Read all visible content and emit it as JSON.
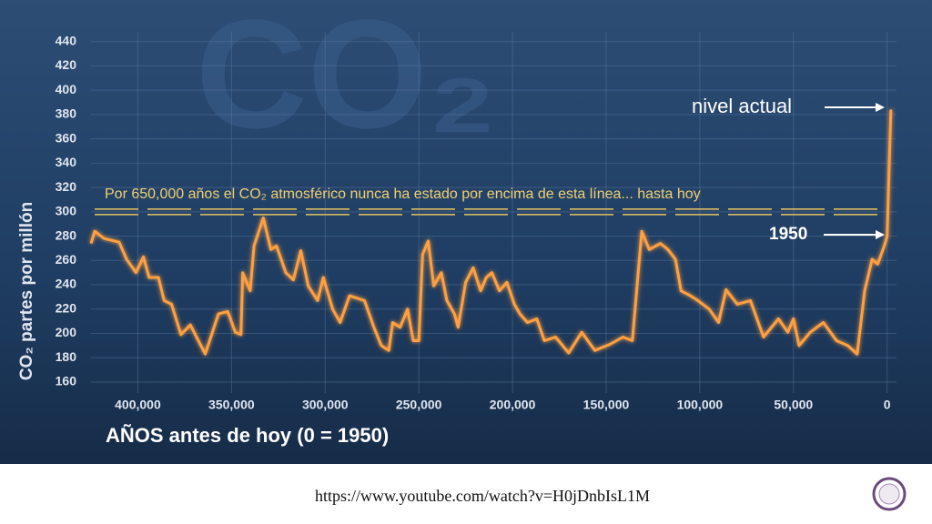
{
  "chart_data": {
    "type": "line",
    "watermark": "CO₂",
    "ylabel": "CO₂ partes por millón",
    "xlabel": "AÑOS antes de hoy (0 = 1950)",
    "threshold": 300,
    "threshold_label": "Por 650,000 años el CO₂ atmosférico nunca ha estado por encima de esta línea... hasta hoy",
    "annotations": [
      "nivel actual",
      "1950"
    ],
    "color": "#ffa040",
    "grid": true,
    "xlim": [
      425000,
      -5000
    ],
    "ylim": [
      151,
      448
    ],
    "xticks": [
      {
        "value": 400000,
        "label": "400,000"
      },
      {
        "value": 350000,
        "label": "350,000"
      },
      {
        "value": 300000,
        "label": "300,000"
      },
      {
        "value": 250000,
        "label": "250,000"
      },
      {
        "value": 200000,
        "label": "200,000"
      },
      {
        "value": 150000,
        "label": "150,000"
      },
      {
        "value": 100000,
        "label": "100,000"
      },
      {
        "value": 50000,
        "label": "50,000"
      },
      0
    ],
    "yticks": [
      160,
      180,
      200,
      220,
      240,
      260,
      280,
      300,
      320,
      340,
      360,
      380,
      400,
      420,
      440
    ],
    "series": [
      {
        "name": "CO₂",
        "color": "#ffa040",
        "x": [
          425000,
          423000,
          418000,
          410000,
          406000,
          401000,
          397000,
          394000,
          389000,
          386000,
          382000,
          377000,
          372000,
          364000,
          357000,
          352000,
          348000,
          345000,
          344000,
          340000,
          338000,
          333000,
          329000,
          326000,
          321000,
          317000,
          313000,
          309000,
          304000,
          301000,
          296000,
          292000,
          287000,
          279000,
          274000,
          270000,
          266000,
          264000,
          260000,
          256000,
          253000,
          250000,
          248000,
          245000,
          242000,
          238000,
          235000,
          231000,
          229000,
          225000,
          221000,
          217000,
          214000,
          211000,
          207000,
          203000,
          199000,
          196000,
          192000,
          187000,
          183000,
          177000,
          170000,
          163000,
          156000,
          148000,
          141000,
          136000,
          131000,
          127000,
          121000,
          117000,
          113000,
          110000,
          105000,
          101000,
          95000,
          90000,
          86000,
          80000,
          73000,
          66000,
          58000,
          53000,
          50000,
          47000,
          41000,
          34000,
          27000,
          21000,
          16000,
          12000,
          8000,
          5000,
          1500,
          0,
          -2000
        ],
        "values": [
          274,
          284,
          278,
          275,
          261,
          250,
          263,
          246,
          246,
          227,
          224,
          199,
          207,
          183,
          216,
          218,
          201,
          199,
          250,
          235,
          272,
          295,
          269,
          272,
          250,
          244,
          268,
          239,
          227,
          246,
          220,
          209,
          231,
          227,
          205,
          190,
          186,
          209,
          205,
          220,
          194,
          194,
          265,
          276,
          239,
          250,
          227,
          216,
          205,
          242,
          254,
          235,
          246,
          250,
          235,
          242,
          224,
          216,
          209,
          212,
          194,
          197,
          184,
          201,
          186,
          191,
          197,
          194,
          284,
          269,
          274,
          269,
          261,
          235,
          231,
          227,
          220,
          209,
          236,
          224,
          227,
          197,
          212,
          201,
          212,
          190,
          201,
          209,
          194,
          190,
          183,
          235,
          261,
          257,
          272,
          280,
          384
        ]
      }
    ]
  },
  "footer": {
    "url": "https://www.youtube.com/watch?v=H0jDnbIsL1M"
  }
}
